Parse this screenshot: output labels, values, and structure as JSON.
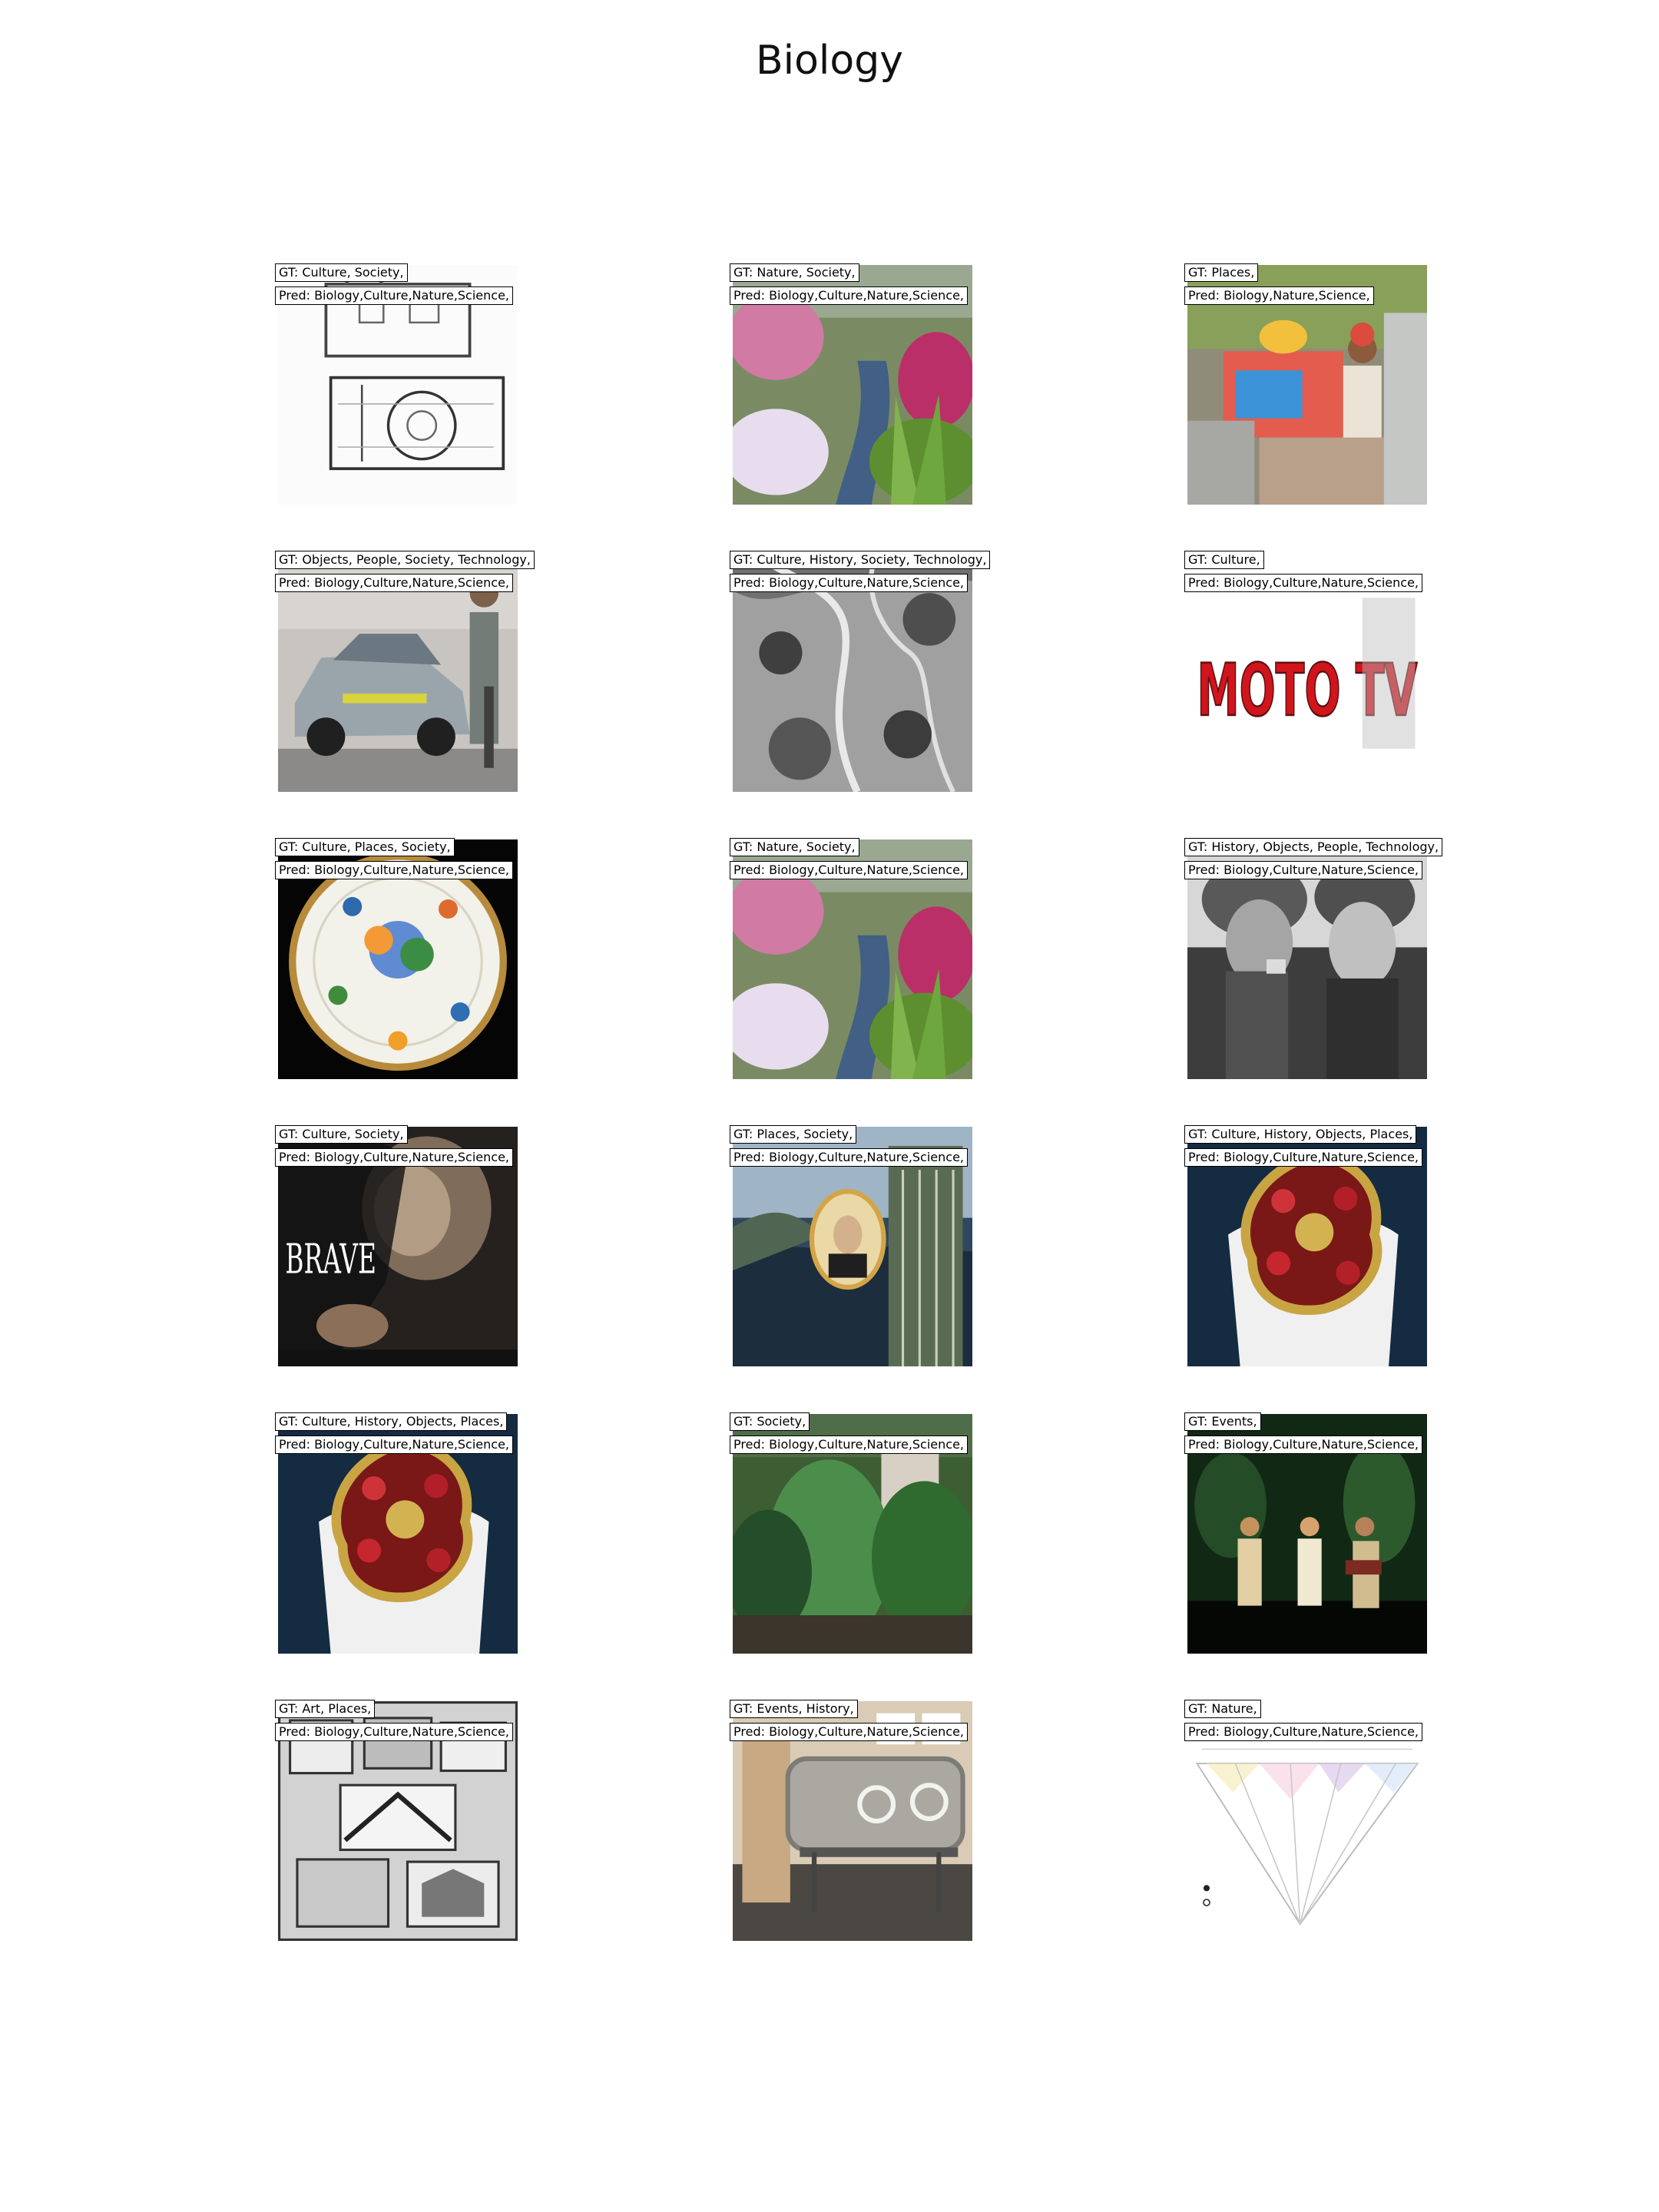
{
  "title": "Biology",
  "tiles": [
    {
      "gt": "GT: Culture, Society,",
      "pred": "Pred: Biology,Culture,Nature,Science,",
      "image": "architectural-floor-plan"
    },
    {
      "gt": "GT: Nature, Society,",
      "pred": "Pred: Biology,Culture,Nature,Science,",
      "image": "garden-stream"
    },
    {
      "gt": "GT: Places,",
      "pred": "Pred: Biology,Nature,Science,",
      "image": "street-shrine"
    },
    {
      "gt": "GT: Objects, People, Society, Technology,",
      "pred": "Pred: Biology,Culture,Nature,Science,",
      "image": "police-car"
    },
    {
      "gt": "GT: Culture, History, Society, Technology,",
      "pred": "Pred: Biology,Culture,Nature,Science,",
      "image": "aerial-landscape"
    },
    {
      "gt": "GT: Culture,",
      "pred": "Pred: Biology,Culture,Nature,Science,",
      "image": "moto-tv-logo",
      "logo_text": "MOTO TV"
    },
    {
      "gt": "GT: Culture, Places, Society,",
      "pred": "Pred: Biology,Culture,Nature,Science,",
      "image": "decorated-plate"
    },
    {
      "gt": "GT: Nature, Society,",
      "pred": "Pred: Biology,Culture,Nature,Science,",
      "image": "garden-stream"
    },
    {
      "gt": "GT: History, Objects, People, Technology,",
      "pred": "Pred: Biology,Culture,Nature,Science,",
      "image": "soldiers-photo"
    },
    {
      "gt": "GT: Culture, Society,",
      "pred": "Pred: Biology,Culture,Nature,Science,",
      "image": "brave-festival-poster",
      "poster_text": "BRAVE"
    },
    {
      "gt": "GT: Places, Society,",
      "pred": "Pred: Biology,Culture,Nature,Science,",
      "image": "painted-portrait-scene"
    },
    {
      "gt": "GT: Culture, History, Objects, Places,",
      "pred": "Pred: Biology,Culture,Nature,Science,",
      "image": "jeweled-brooch"
    },
    {
      "gt": "GT: Culture, History, Objects, Places,",
      "pred": "Pred: Biology,Culture,Nature,Science,",
      "image": "jeweled-brooch"
    },
    {
      "gt": "GT: Society,",
      "pred": "Pred: Biology,Culture,Nature,Science,",
      "image": "garden-shrub"
    },
    {
      "gt": "GT: Events,",
      "pred": "Pred: Biology,Culture,Nature,Science,",
      "image": "concert-stage"
    },
    {
      "gt": "GT: Art, Places,",
      "pred": "Pred: Biology,Culture,Nature,Science,",
      "image": "engraving-collage"
    },
    {
      "gt": "GT: Events, History,",
      "pred": "Pred: Biology,Culture,Nature,Science,",
      "image": "iron-lung-museum"
    },
    {
      "gt": "GT: Nature,",
      "pred": "Pred: Biology,Culture,Nature,Science,",
      "image": "phylogenetic-tree"
    }
  ]
}
